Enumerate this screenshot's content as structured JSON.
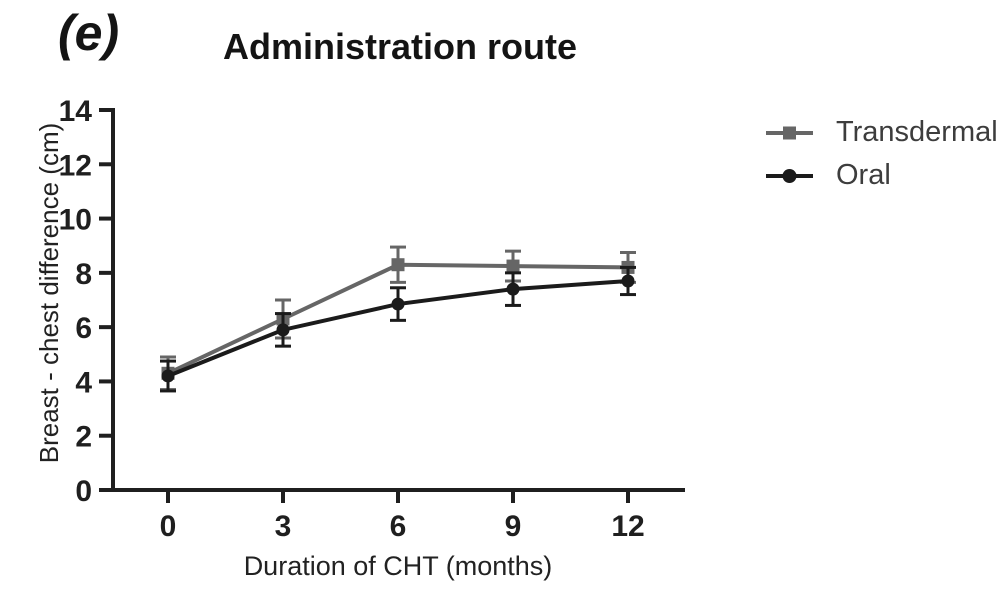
{
  "panel_label": "(e)",
  "chart_data": {
    "type": "line",
    "title": "Administration route",
    "xlabel": "Duration of CHT (months)",
    "ylabel": "Breast - chest difference (cm)",
    "x": [
      0,
      3,
      6,
      9,
      12
    ],
    "xticks": [
      0,
      3,
      6,
      9,
      12
    ],
    "yticks": [
      0,
      2,
      4,
      6,
      8,
      10,
      12,
      14
    ],
    "xlim": [
      0,
      12
    ],
    "ylim": [
      0,
      14
    ],
    "grid": false,
    "legend_position": "right",
    "error_bars": true,
    "series": [
      {
        "name": "Transdermal",
        "marker": "square",
        "color": "#666666",
        "values": [
          4.3,
          6.3,
          8.3,
          8.25,
          8.2
        ],
        "errors": [
          0.6,
          0.7,
          0.65,
          0.55,
          0.55
        ]
      },
      {
        "name": "Oral",
        "marker": "circle",
        "color": "#1b1b1b",
        "values": [
          4.2,
          5.9,
          6.85,
          7.4,
          7.7
        ],
        "errors": [
          0.55,
          0.6,
          0.6,
          0.6,
          0.5
        ]
      }
    ],
    "colors": {
      "axis": "#1f1f1f"
    }
  }
}
